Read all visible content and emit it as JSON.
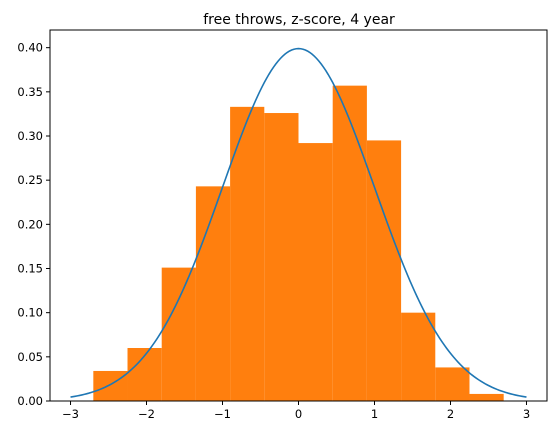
{
  "chart_data": {
    "type": "bar",
    "title": "free throws, z-score, 4 year",
    "xlabel": "",
    "ylabel": "",
    "xlim": [
      -3.27,
      3.27
    ],
    "ylim": [
      0,
      0.42
    ],
    "xticks": [
      -3,
      -2,
      -1,
      0,
      1,
      2,
      3
    ],
    "xtick_labels": [
      "−3",
      "−2",
      "−1",
      "0",
      "1",
      "2",
      "3"
    ],
    "yticks": [
      0.0,
      0.05,
      0.1,
      0.15,
      0.2,
      0.25,
      0.3,
      0.35,
      0.4
    ],
    "ytick_labels": [
      "0.00",
      "0.05",
      "0.10",
      "0.15",
      "0.20",
      "0.25",
      "0.30",
      "0.35",
      "0.40"
    ],
    "grid": false,
    "series": [
      {
        "kind": "histogram",
        "color": "#ff7f0e",
        "bin_edges": [
          -2.7,
          -2.25,
          -1.8,
          -1.35,
          -0.9,
          -0.45,
          0.0,
          0.45,
          0.9,
          1.35,
          1.8,
          2.25,
          2.7
        ],
        "values": [
          0.034,
          0.06,
          0.151,
          0.243,
          0.333,
          0.326,
          0.292,
          0.357,
          0.295,
          0.1,
          0.038,
          0.008
        ]
      },
      {
        "kind": "line",
        "color": "#1f77b4",
        "function": "standard normal pdf",
        "x_range": [
          -3,
          3
        ],
        "peak": 0.399
      }
    ]
  }
}
